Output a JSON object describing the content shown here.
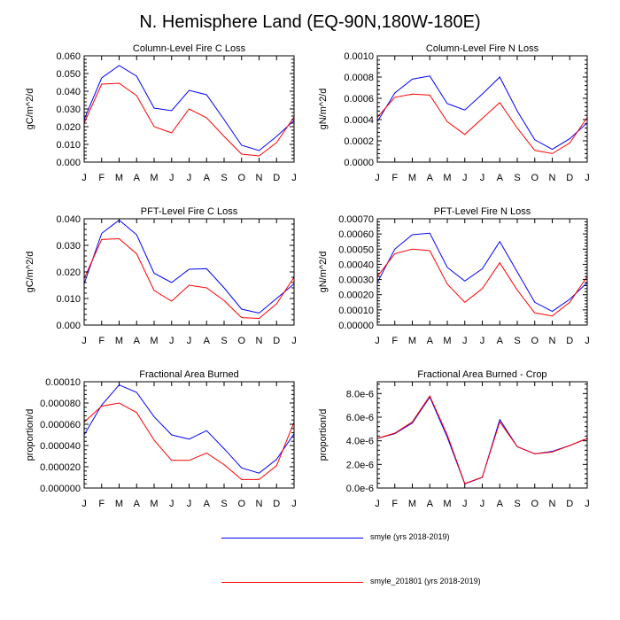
{
  "title": "N. Hemisphere Land (EQ-90N,180W-180E)",
  "legend": [
    {
      "label": "smyle (yrs 2018-2019)",
      "color": "#0000ff"
    },
    {
      "label": "smyle_201801 (yrs 2018-2019)",
      "color": "#ff0000"
    }
  ],
  "chart_data": [
    {
      "type": "line",
      "title": "Column-Level Fire C Loss",
      "ylabel": "gC/m^2/d",
      "categories": [
        "J",
        "F",
        "M",
        "A",
        "M",
        "J",
        "J",
        "A",
        "S",
        "O",
        "N",
        "D",
        "J"
      ],
      "ylim": [
        0,
        0.06
      ],
      "yticks": [
        "0.000",
        "0.010",
        "0.020",
        "0.030",
        "0.040",
        "0.050",
        "0.060"
      ],
      "ytick_values": [
        0,
        0.01,
        0.02,
        0.03,
        0.04,
        0.05,
        0.06
      ],
      "series": [
        {
          "name": "smyle (yrs 2018-2019)",
          "color": "#0000ff",
          "values": [
            0.024,
            0.0475,
            0.0545,
            0.0485,
            0.0305,
            0.029,
            0.0405,
            0.038,
            0.024,
            0.0095,
            0.0065,
            0.0145,
            0.0235
          ]
        },
        {
          "name": "smyle_201801 (yrs 2018-2019)",
          "color": "#ff0000",
          "values": [
            0.022,
            0.044,
            0.0445,
            0.0375,
            0.02,
            0.0165,
            0.03,
            0.025,
            0.0145,
            0.0045,
            0.0035,
            0.011,
            0.0255
          ]
        }
      ]
    },
    {
      "type": "line",
      "title": "Column-Level Fire N Loss",
      "ylabel": "gN/m^2/d",
      "categories": [
        "J",
        "F",
        "M",
        "A",
        "M",
        "J",
        "J",
        "A",
        "S",
        "O",
        "N",
        "D",
        "J"
      ],
      "ylim": [
        0,
        0.001
      ],
      "yticks": [
        "0.0000",
        "0.0002",
        "0.0004",
        "0.0006",
        "0.0008",
        "0.0010"
      ],
      "ytick_values": [
        0,
        0.0002,
        0.0004,
        0.0006,
        0.0008,
        0.001
      ],
      "series": [
        {
          "name": "smyle (yrs 2018-2019)",
          "color": "#0000ff",
          "values": [
            0.00038,
            0.00065,
            0.00078,
            0.00081,
            0.00055,
            0.00049,
            0.00064,
            0.0008,
            0.00048,
            0.00021,
            0.00012,
            0.00022,
            0.00037
          ]
        },
        {
          "name": "smyle_201801 (yrs 2018-2019)",
          "color": "#ff0000",
          "values": [
            0.00042,
            0.00061,
            0.00064,
            0.00063,
            0.00038,
            0.00026,
            0.00041,
            0.00056,
            0.00032,
            0.00011,
            8e-05,
            0.00018,
            0.00042
          ]
        }
      ]
    },
    {
      "type": "line",
      "title": "PFT-Level Fire C Loss",
      "ylabel": "gC/m^2/d",
      "categories": [
        "J",
        "F",
        "M",
        "A",
        "M",
        "J",
        "J",
        "A",
        "S",
        "O",
        "N",
        "D",
        "J"
      ],
      "ylim": [
        0,
        0.04
      ],
      "yticks": [
        "0.000",
        "0.010",
        "0.020",
        "0.030",
        "0.040"
      ],
      "ytick_values": [
        0,
        0.01,
        0.02,
        0.03,
        0.04
      ],
      "series": [
        {
          "name": "smyle (yrs 2018-2019)",
          "color": "#0000ff",
          "values": [
            0.0155,
            0.0345,
            0.0395,
            0.034,
            0.0195,
            0.016,
            0.021,
            0.0212,
            0.014,
            0.006,
            0.0045,
            0.01,
            0.0155
          ]
        },
        {
          "name": "smyle_201801 (yrs 2018-2019)",
          "color": "#ff0000",
          "values": [
            0.0175,
            0.0322,
            0.0325,
            0.0268,
            0.013,
            0.009,
            0.015,
            0.014,
            0.0092,
            0.0028,
            0.0025,
            0.008,
            0.018
          ]
        }
      ]
    },
    {
      "type": "line",
      "title": "PFT-Level Fire N Loss",
      "ylabel": "gN/m^2/d",
      "categories": [
        "J",
        "F",
        "M",
        "A",
        "M",
        "J",
        "J",
        "A",
        "S",
        "O",
        "N",
        "D",
        "J"
      ],
      "ylim": [
        0,
        0.0007
      ],
      "yticks": [
        "0.00000",
        "0.00010",
        "0.00020",
        "0.00030",
        "0.00040",
        "0.00050",
        "0.00060",
        "0.00070"
      ],
      "ytick_values": [
        0,
        0.0001,
        0.0002,
        0.0003,
        0.0004,
        0.0005,
        0.0006,
        0.0007
      ],
      "series": [
        {
          "name": "smyle (yrs 2018-2019)",
          "color": "#0000ff",
          "values": [
            0.00028,
            0.0005,
            0.000595,
            0.000605,
            0.00038,
            0.00029,
            0.00037,
            0.00055,
            0.00035,
            0.00015,
            9e-05,
            0.00017,
            0.00028
          ]
        },
        {
          "name": "smyle_201801 (yrs 2018-2019)",
          "color": "#ff0000",
          "values": [
            0.00032,
            0.00047,
            0.0005,
            0.00049,
            0.00027,
            0.00015,
            0.00024,
            0.00041,
            0.00023,
            8e-05,
            6e-05,
            0.00015,
            0.00032
          ]
        }
      ]
    },
    {
      "type": "line",
      "title": "Fractional Area Burned",
      "ylabel": "proportion/d",
      "categories": [
        "J",
        "F",
        "M",
        "A",
        "M",
        "J",
        "J",
        "A",
        "S",
        "O",
        "N",
        "D",
        "J"
      ],
      "ylim": [
        0,
        0.0001
      ],
      "yticks": [
        "0.000000",
        "0.000020",
        "0.000040",
        "0.000060",
        "0.000080",
        "0.00010"
      ],
      "ytick_values": [
        0,
        2e-05,
        4e-05,
        6e-05,
        8e-05,
        0.0001
      ],
      "series": [
        {
          "name": "smyle (yrs 2018-2019)",
          "color": "#0000ff",
          "values": [
            5e-05,
            7.8e-05,
            9.7e-05,
            9e-05,
            6.7e-05,
            5e-05,
            4.6e-05,
            5.4e-05,
            3.7e-05,
            1.9e-05,
            1.4e-05,
            2.7e-05,
            5.1e-05
          ]
        },
        {
          "name": "smyle_201801 (yrs 2018-2019)",
          "color": "#ff0000",
          "values": [
            6.2e-05,
            7.7e-05,
            8e-05,
            7.1e-05,
            4.5e-05,
            2.6e-05,
            2.6e-05,
            3.3e-05,
            2.2e-05,
            8e-06,
            8e-06,
            2.1e-05,
            6.2e-05
          ]
        }
      ]
    },
    {
      "type": "line",
      "title": "Fractional Area Burned - Crop",
      "ylabel": "proportion/d",
      "categories": [
        "J",
        "F",
        "M",
        "A",
        "M",
        "J",
        "J",
        "A",
        "S",
        "O",
        "N",
        "D",
        "J"
      ],
      "ylim": [
        0,
        9e-06
      ],
      "yticks": [
        "0.0e-6",
        "2.0e-6",
        "4.0e-6",
        "6.0e-6",
        "8.0e-6"
      ],
      "ytick_values": [
        0,
        2e-06,
        4e-06,
        6e-06,
        8e-06
      ],
      "series": [
        {
          "name": "smyle (yrs 2018-2019)",
          "color": "#0000ff",
          "values": [
            4.2e-06,
            4.6e-06,
            5.5e-06,
            7.7e-06,
            4.3e-06,
            3.5e-07,
            9e-07,
            5.8e-06,
            3.5e-06,
            2.9e-06,
            3.1e-06,
            3.6e-06,
            4.2e-06
          ]
        },
        {
          "name": "smyle_201801 (yrs 2018-2019)",
          "color": "#ff0000",
          "values": [
            4.2e-06,
            4.65e-06,
            5.6e-06,
            7.8e-06,
            4.5e-06,
            3.8e-07,
            9.2e-07,
            5.6e-06,
            3.5e-06,
            2.9e-06,
            3.05e-06,
            3.6e-06,
            4.2e-06
          ]
        }
      ]
    }
  ]
}
